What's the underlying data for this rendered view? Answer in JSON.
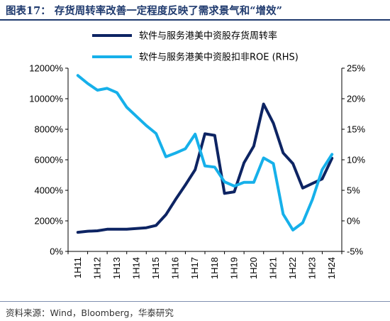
{
  "title": "图表17：  存货周转率改善一定程度反映了需求景气和“增效”",
  "source": "资料来源：Wind，Bloomberg，华泰研究",
  "chart_data": {
    "type": "line",
    "x": [
      "1H11",
      "1H12",
      "1H13",
      "1H14",
      "1H15",
      "1H16",
      "1H17",
      "1H18",
      "1H19",
      "1H20",
      "1H21",
      "1H22",
      "1H23",
      "1H24"
    ],
    "xlabel": "",
    "ylabel": "",
    "y_left": {
      "min": 0,
      "max": 12000,
      "step": 2000,
      "tick_labels": [
        "0%",
        "2000%",
        "4000%",
        "6000%",
        "8000%",
        "10000%",
        "12000%"
      ]
    },
    "y_right": {
      "min": -5,
      "max": 25,
      "step": 5,
      "tick_labels": [
        "-5%",
        "0%",
        "5%",
        "10%",
        "15%",
        "20%",
        "25%"
      ]
    },
    "legend_position": "top-center",
    "grid": false,
    "series": [
      {
        "name": "软件与服务港美中资股存货周转率",
        "axis": "left",
        "color": "#0d2463",
        "points": [
          {
            "x": 0.0,
            "y": 1250
          },
          {
            "x": 0.5,
            "y": 1320
          },
          {
            "x": 1.0,
            "y": 1350
          },
          {
            "x": 1.5,
            "y": 1450
          },
          {
            "x": 2.0,
            "y": 1450
          },
          {
            "x": 2.5,
            "y": 1450
          },
          {
            "x": 3.0,
            "y": 1500
          },
          {
            "x": 3.5,
            "y": 1550
          },
          {
            "x": 4.0,
            "y": 1700
          },
          {
            "x": 4.5,
            "y": 2400
          },
          {
            "x": 5.0,
            "y": 3400
          },
          {
            "x": 5.5,
            "y": 4350
          },
          {
            "x": 6.0,
            "y": 5350
          },
          {
            "x": 6.5,
            "y": 7700
          },
          {
            "x": 7.0,
            "y": 7600
          },
          {
            "x": 7.5,
            "y": 3800
          },
          {
            "x": 8.0,
            "y": 3900
          },
          {
            "x": 8.5,
            "y": 5800
          },
          {
            "x": 9.0,
            "y": 6900
          },
          {
            "x": 9.5,
            "y": 9650
          },
          {
            "x": 10.0,
            "y": 8400
          },
          {
            "x": 10.5,
            "y": 6450
          },
          {
            "x": 11.0,
            "y": 5750
          },
          {
            "x": 11.5,
            "y": 4150
          },
          {
            "x": 12.0,
            "y": 4450
          },
          {
            "x": 12.5,
            "y": 4750
          },
          {
            "x": 13.0,
            "y": 6100
          }
        ]
      },
      {
        "name": "软件与服务港美中资股扣非ROE (RHS)",
        "axis": "right",
        "color": "#16b0ea",
        "points": [
          {
            "x": 0.0,
            "y": 23.8
          },
          {
            "x": 0.5,
            "y": 22.5
          },
          {
            "x": 1.0,
            "y": 21.4
          },
          {
            "x": 1.5,
            "y": 21.7
          },
          {
            "x": 2.0,
            "y": 21.0
          },
          {
            "x": 2.5,
            "y": 18.6
          },
          {
            "x": 3.0,
            "y": 17.1
          },
          {
            "x": 3.5,
            "y": 15.6
          },
          {
            "x": 4.0,
            "y": 14.3
          },
          {
            "x": 4.5,
            "y": 10.5
          },
          {
            "x": 5.0,
            "y": 11.1
          },
          {
            "x": 5.5,
            "y": 11.8
          },
          {
            "x": 6.0,
            "y": 14.2
          },
          {
            "x": 6.5,
            "y": 9.0
          },
          {
            "x": 7.0,
            "y": 8.8
          },
          {
            "x": 7.5,
            "y": 6.4
          },
          {
            "x": 8.0,
            "y": 5.7
          },
          {
            "x": 8.5,
            "y": 6.3
          },
          {
            "x": 9.0,
            "y": 6.3
          },
          {
            "x": 9.5,
            "y": 10.3
          },
          {
            "x": 10.0,
            "y": 9.4
          },
          {
            "x": 10.5,
            "y": 1.1
          },
          {
            "x": 11.0,
            "y": -1.5
          },
          {
            "x": 11.5,
            "y": -0.3
          },
          {
            "x": 12.0,
            "y": 3.5
          },
          {
            "x": 12.5,
            "y": 8.4
          },
          {
            "x": 13.0,
            "y": 10.9
          }
        ]
      }
    ]
  }
}
